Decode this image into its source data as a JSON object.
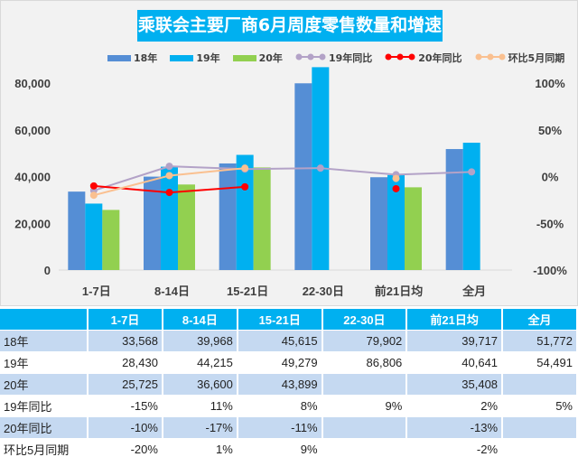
{
  "chart_data": {
    "type": "bar+line",
    "title": "乘联会主要厂商6月周度零售数量和增速",
    "categories": [
      "1-7日",
      "8-14日",
      "15-21日",
      "22-30日",
      "前21日均",
      "全月"
    ],
    "series": [
      {
        "name": "18年",
        "type": "bar",
        "axis": "left",
        "color": "#558ed5",
        "values": [
          33568,
          39968,
          45615,
          79902,
          39717,
          51772
        ]
      },
      {
        "name": "19年",
        "type": "bar",
        "axis": "left",
        "color": "#00b0f0",
        "values": [
          28430,
          44215,
          49279,
          86806,
          40641,
          54491
        ]
      },
      {
        "name": "20年",
        "type": "bar",
        "axis": "left",
        "color": "#92d050",
        "values": [
          25725,
          36600,
          43899,
          null,
          35408,
          null
        ]
      },
      {
        "name": "19年同比",
        "type": "line",
        "axis": "right",
        "color": "#b3a2c7",
        "values": [
          -15,
          11,
          8,
          9,
          2,
          5
        ]
      },
      {
        "name": "20年同比",
        "type": "line",
        "axis": "right",
        "color": "#ff0000",
        "values": [
          -10,
          -17,
          -11,
          null,
          -13,
          null
        ]
      },
      {
        "name": "环比5月同期",
        "type": "line",
        "axis": "right",
        "color": "#fac090",
        "values": [
          -20,
          1,
          9,
          null,
          -2,
          null
        ]
      }
    ],
    "left_axis": {
      "min": 0,
      "max": 80000,
      "ticks": [
        "0",
        "20,000",
        "40,000",
        "60,000",
        "80,000"
      ]
    },
    "right_axis": {
      "min": -100,
      "max": 100,
      "ticks": [
        "-100%",
        "-50%",
        "0%",
        "50%",
        "100%"
      ]
    },
    "grid": false,
    "legend": "top"
  },
  "table": {
    "headers": [
      "",
      "1-7日",
      "8-14日",
      "15-21日",
      "22-30日",
      "前21日均",
      "全月"
    ],
    "rows": [
      [
        "18年",
        "33,568",
        "39,968",
        "45,615",
        "79,902",
        "39,717",
        "51,772"
      ],
      [
        "19年",
        "28,430",
        "44,215",
        "49,279",
        "86,806",
        "40,641",
        "54,491"
      ],
      [
        "20年",
        "25,725",
        "36,600",
        "43,899",
        "",
        "35,408",
        ""
      ],
      [
        "19年同比",
        "-15%",
        "11%",
        "8%",
        "9%",
        "2%",
        "5%"
      ],
      [
        "20年同比",
        "-10%",
        "-17%",
        "-11%",
        "",
        "-13%",
        ""
      ],
      [
        "环比5月同期",
        "-20%",
        "1%",
        "9%",
        "",
        "-2%",
        ""
      ]
    ]
  }
}
